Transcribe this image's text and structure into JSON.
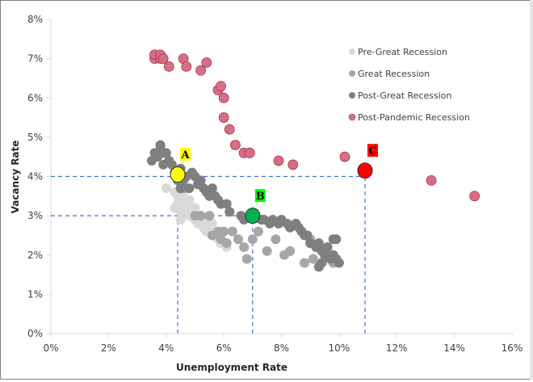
{
  "chart_data": {
    "type": "scatter",
    "title": "",
    "xlabel": "Unemployment Rate",
    "ylabel": "Vacancy Rate",
    "xlim": [
      0,
      16
    ],
    "ylim": [
      0,
      8
    ],
    "x_ticks": [
      "0%",
      "2%",
      "4%",
      "6%",
      "8%",
      "10%",
      "12%",
      "14%",
      "16%"
    ],
    "y_ticks": [
      "0%",
      "1%",
      "2%",
      "3%",
      "4%",
      "5%",
      "6%",
      "7%",
      "8%"
    ],
    "grid": false,
    "legend_position": "top-right",
    "series": [
      {
        "name": "Pre-Great Recession",
        "color": "#d9d9d9",
        "points": [
          [
            4.0,
            3.7
          ],
          [
            4.3,
            3.6
          ],
          [
            4.4,
            3.5
          ],
          [
            4.4,
            3.3
          ],
          [
            4.5,
            3.4
          ],
          [
            4.6,
            3.3
          ],
          [
            4.5,
            3.1
          ],
          [
            4.7,
            3.2
          ],
          [
            4.8,
            3.0
          ],
          [
            4.9,
            3.0
          ],
          [
            5.0,
            2.9
          ],
          [
            5.1,
            2.8
          ],
          [
            5.2,
            2.9
          ],
          [
            5.3,
            2.7
          ],
          [
            5.4,
            2.6
          ],
          [
            5.5,
            2.7
          ],
          [
            5.6,
            2.5
          ],
          [
            5.7,
            2.5
          ],
          [
            5.8,
            2.4
          ],
          [
            5.9,
            2.3
          ],
          [
            6.0,
            2.3
          ],
          [
            6.1,
            2.2
          ],
          [
            4.6,
            3.6
          ],
          [
            4.8,
            3.4
          ],
          [
            5.0,
            3.2
          ],
          [
            5.3,
            2.9
          ],
          [
            5.6,
            2.8
          ],
          [
            5.9,
            2.6
          ],
          [
            4.3,
            3.2
          ],
          [
            4.5,
            2.9
          ]
        ]
      },
      {
        "name": "Great Recession",
        "color": "#a6a6a6",
        "points": [
          [
            4.6,
            3.7
          ],
          [
            5.0,
            3.0
          ],
          [
            5.2,
            3.0
          ],
          [
            5.5,
            3.0
          ],
          [
            5.8,
            2.6
          ],
          [
            6.0,
            2.6
          ],
          [
            6.5,
            2.4
          ],
          [
            6.3,
            2.6
          ],
          [
            7.0,
            2.4
          ],
          [
            7.5,
            2.1
          ],
          [
            8.3,
            2.1
          ],
          [
            6.7,
            2.2
          ],
          [
            7.2,
            2.6
          ],
          [
            9.1,
            1.9
          ],
          [
            8.1,
            2.0
          ],
          [
            8.8,
            1.8
          ],
          [
            9.6,
            2.0
          ],
          [
            9.3,
            1.7
          ],
          [
            9.0,
            2.4
          ],
          [
            7.8,
            2.4
          ],
          [
            6.1,
            2.3
          ],
          [
            5.6,
            2.5
          ],
          [
            5.9,
            2.4
          ],
          [
            6.8,
            1.9
          ],
          [
            9.8,
            1.8
          ],
          [
            9.5,
            2.1
          ]
        ]
      },
      {
        "name": "Post-Great Recession",
        "color": "#7f7f7f",
        "points": [
          [
            3.6,
            4.6
          ],
          [
            3.7,
            4.5
          ],
          [
            3.8,
            4.7
          ],
          [
            3.9,
            4.6
          ],
          [
            3.5,
            4.4
          ],
          [
            3.8,
            4.8
          ],
          [
            4.0,
            4.6
          ],
          [
            4.1,
            4.4
          ],
          [
            4.2,
            4.3
          ],
          [
            4.3,
            4.1
          ],
          [
            4.4,
            3.9
          ],
          [
            4.6,
            3.9
          ],
          [
            4.7,
            4.0
          ],
          [
            4.9,
            4.1
          ],
          [
            5.0,
            4.0
          ],
          [
            4.8,
            3.7
          ],
          [
            5.1,
            3.8
          ],
          [
            5.3,
            3.7
          ],
          [
            5.4,
            3.6
          ],
          [
            5.6,
            3.7
          ],
          [
            5.7,
            3.5
          ],
          [
            5.8,
            3.4
          ],
          [
            5.9,
            3.3
          ],
          [
            6.1,
            3.3
          ],
          [
            6.2,
            3.1
          ],
          [
            4.5,
            3.7
          ],
          [
            5.2,
            3.9
          ],
          [
            6.6,
            3.0
          ],
          [
            6.7,
            2.9
          ],
          [
            6.9,
            3.0
          ],
          [
            7.1,
            3.0
          ],
          [
            7.3,
            2.9
          ],
          [
            7.4,
            2.9
          ],
          [
            7.6,
            2.8
          ],
          [
            7.7,
            2.9
          ],
          [
            7.9,
            2.8
          ],
          [
            8.0,
            2.9
          ],
          [
            8.2,
            2.8
          ],
          [
            8.3,
            2.7
          ],
          [
            8.5,
            2.8
          ],
          [
            8.6,
            2.7
          ],
          [
            8.7,
            2.6
          ],
          [
            8.8,
            2.5
          ],
          [
            8.9,
            2.5
          ],
          [
            9.0,
            2.3
          ],
          [
            9.2,
            2.2
          ],
          [
            9.3,
            2.3
          ],
          [
            9.4,
            2.1
          ],
          [
            9.5,
            2.0
          ],
          [
            9.6,
            2.2
          ],
          [
            9.7,
            1.9
          ],
          [
            9.8,
            2.0
          ],
          [
            9.9,
            1.9
          ],
          [
            10.0,
            1.8
          ],
          [
            9.4,
            1.8
          ],
          [
            9.3,
            1.7
          ],
          [
            9.8,
            2.4
          ],
          [
            9.9,
            2.4
          ],
          [
            3.9,
            4.3
          ],
          [
            4.5,
            4.2
          ],
          [
            5.5,
            3.5
          ]
        ]
      },
      {
        "name": "Post-Pandemic Recession",
        "color": "#c0405a",
        "points": [
          [
            3.6,
            7.0
          ],
          [
            3.6,
            7.1
          ],
          [
            3.8,
            7.0
          ],
          [
            3.8,
            7.1
          ],
          [
            3.9,
            7.0
          ],
          [
            4.1,
            6.8
          ],
          [
            4.6,
            7.0
          ],
          [
            4.7,
            6.8
          ],
          [
            5.2,
            6.7
          ],
          [
            5.4,
            6.9
          ],
          [
            5.8,
            6.2
          ],
          [
            5.9,
            6.3
          ],
          [
            6.0,
            6.0
          ],
          [
            6.0,
            5.5
          ],
          [
            6.2,
            5.2
          ],
          [
            6.4,
            4.8
          ],
          [
            6.7,
            4.6
          ],
          [
            6.9,
            4.6
          ],
          [
            7.9,
            4.4
          ],
          [
            8.4,
            4.3
          ],
          [
            10.2,
            4.5
          ],
          [
            13.2,
            3.9
          ],
          [
            14.7,
            3.5
          ]
        ]
      }
    ],
    "annotations": [
      {
        "label": "A",
        "x": 4.4,
        "y": 4.05,
        "color": "#ffff00",
        "label_bg": "#ffff00"
      },
      {
        "label": "B",
        "x": 7.0,
        "y": 3.0,
        "color": "#00b050",
        "label_bg": "#00ff00"
      },
      {
        "label": "C",
        "x": 10.9,
        "y": 4.15,
        "color": "#ff0000",
        "label_bg": "#ff0000"
      }
    ],
    "reference_lines": [
      {
        "orientation": "horizontal",
        "y": 4.0,
        "x_from": 0,
        "x_to": 10.9
      },
      {
        "orientation": "horizontal",
        "y": 3.0,
        "x_from": 0,
        "x_to": 7.0
      },
      {
        "orientation": "vertical",
        "x": 4.4,
        "y_from": 0,
        "y_to": 4.0
      },
      {
        "orientation": "vertical",
        "x": 7.0,
        "y_from": 0,
        "y_to": 3.0
      },
      {
        "orientation": "vertical",
        "x": 10.9,
        "y_from": 0,
        "y_to": 4.15
      }
    ]
  }
}
